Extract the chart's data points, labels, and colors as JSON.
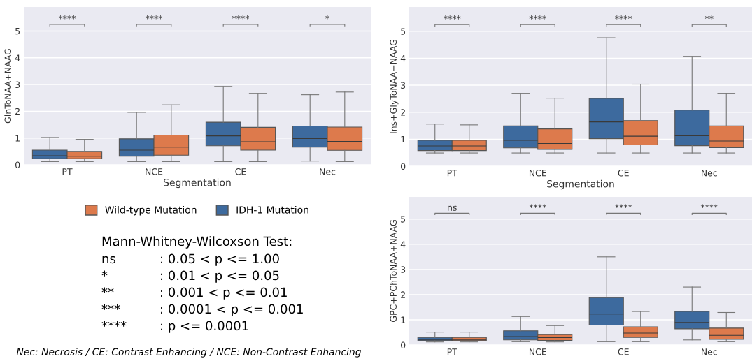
{
  "chart_data": [
    {
      "type": "box",
      "xlabel": "Segmentation",
      "ylabel": "GlnToNAA+NAAG",
      "categories": [
        "PT",
        "NCE",
        "CE",
        "Nec"
      ],
      "ylim": [
        0,
        5.9
      ],
      "yticks": [
        0,
        1,
        2,
        3,
        4,
        5
      ],
      "grid": "y",
      "legend": "bottom",
      "series": [
        {
          "name": "IDH-1 Mutation",
          "color": "#3d6a9e",
          "boxes": [
            {
              "low": 0.12,
              "q1": 0.23,
              "median": 0.34,
              "q3": 0.55,
              "high": 1.02
            },
            {
              "low": 0.12,
              "q1": 0.32,
              "median": 0.55,
              "q3": 0.97,
              "high": 1.96
            },
            {
              "low": 0.12,
              "q1": 0.71,
              "median": 1.08,
              "q3": 1.59,
              "high": 2.93
            },
            {
              "low": 0.14,
              "q1": 0.66,
              "median": 0.98,
              "q3": 1.45,
              "high": 2.62
            }
          ]
        },
        {
          "name": "Wild-type Mutation",
          "color": "#dd7a4c",
          "boxes": [
            {
              "low": 0.12,
              "q1": 0.23,
              "median": 0.32,
              "q3": 0.5,
              "high": 0.95
            },
            {
              "low": 0.12,
              "q1": 0.36,
              "median": 0.66,
              "q3": 1.11,
              "high": 2.24
            },
            {
              "low": 0.12,
              "q1": 0.55,
              "median": 0.86,
              "q3": 1.4,
              "high": 2.67
            },
            {
              "low": 0.12,
              "q1": 0.54,
              "median": 0.87,
              "q3": 1.41,
              "high": 2.72
            }
          ]
        }
      ],
      "annotations": [
        "****",
        "****",
        "****",
        "*"
      ]
    },
    {
      "type": "box",
      "xlabel": "Segmentation",
      "ylabel": "Ins+GlyToNAA+NAAG",
      "categories": [
        "PT",
        "NCE",
        "CE",
        "Nec"
      ],
      "ylim": [
        0,
        5.9
      ],
      "yticks": [
        0,
        1,
        2,
        3,
        4,
        5
      ],
      "grid": "y",
      "series": [
        {
          "color": "#3d6a9e",
          "boxes": [
            {
              "low": 0.49,
              "q1": 0.58,
              "median": 0.75,
              "q3": 0.96,
              "high": 1.56
            },
            {
              "low": 0.49,
              "q1": 0.68,
              "median": 0.96,
              "q3": 1.49,
              "high": 2.7
            },
            {
              "low": 0.49,
              "q1": 1.02,
              "median": 1.64,
              "q3": 2.51,
              "high": 4.76
            },
            {
              "low": 0.49,
              "q1": 0.76,
              "median": 1.13,
              "q3": 2.08,
              "high": 4.07
            }
          ]
        },
        {
          "color": "#dd7a4c",
          "boxes": [
            {
              "low": 0.49,
              "q1": 0.58,
              "median": 0.75,
              "q3": 0.96,
              "high": 1.53
            },
            {
              "low": 0.49,
              "q1": 0.62,
              "median": 0.84,
              "q3": 1.38,
              "high": 2.52
            },
            {
              "low": 0.49,
              "q1": 0.79,
              "median": 1.11,
              "q3": 1.69,
              "high": 3.04
            },
            {
              "low": 0.49,
              "q1": 0.69,
              "median": 0.93,
              "q3": 1.49,
              "high": 2.7
            }
          ]
        }
      ],
      "annotations": [
        "****",
        "****",
        "****",
        "**"
      ]
    },
    {
      "type": "box",
      "ylabel": "GPC+PChToNAA+NAAG",
      "categories": [
        "PT",
        "NCE",
        "CE",
        "Nec"
      ],
      "ylim": [
        0,
        5.88
      ],
      "yticks": [
        0,
        1,
        2,
        3,
        4,
        5
      ],
      "grid": "y",
      "series": [
        {
          "color": "#3d6a9e",
          "boxes": [
            {
              "low": 0.12,
              "q1": 0.17,
              "median": 0.2,
              "q3": 0.3,
              "high": 0.51
            },
            {
              "low": 0.13,
              "q1": 0.2,
              "median": 0.33,
              "q3": 0.56,
              "high": 1.13
            },
            {
              "low": 0.13,
              "q1": 0.79,
              "median": 1.23,
              "q3": 1.88,
              "high": 3.5
            },
            {
              "low": 0.2,
              "q1": 0.64,
              "median": 0.89,
              "q3": 1.33,
              "high": 2.3
            }
          ]
        },
        {
          "color": "#dd7a4c",
          "boxes": [
            {
              "low": 0.12,
              "q1": 0.17,
              "median": 0.2,
              "q3": 0.3,
              "high": 0.51
            },
            {
              "low": 0.12,
              "q1": 0.18,
              "median": 0.29,
              "q3": 0.41,
              "high": 0.77
            },
            {
              "low": 0.13,
              "q1": 0.3,
              "median": 0.47,
              "q3": 0.72,
              "high": 1.33
            },
            {
              "low": 0.13,
              "q1": 0.22,
              "median": 0.38,
              "q3": 0.67,
              "high": 1.29
            }
          ]
        }
      ],
      "annotations": [
        "ns",
        "****",
        "****",
        "****"
      ]
    },
    {
      "type": "other",
      "annotations": [
        "Mann-Whitney-Wilcoxson Test:",
        "ns",
        ": 0.05 < p <= 1.00",
        "*",
        ": 0.01 < p <= 0.05",
        "**",
        ": 0.001 < p <= 0.01",
        "***",
        ": 0.0001 < p <= 0.001",
        "****",
        ": p <= 0.0001",
        "Nec: Necrosis / CE: Contrast Enhancing / NCE: Non-Contrast Enhancing"
      ]
    }
  ]
}
